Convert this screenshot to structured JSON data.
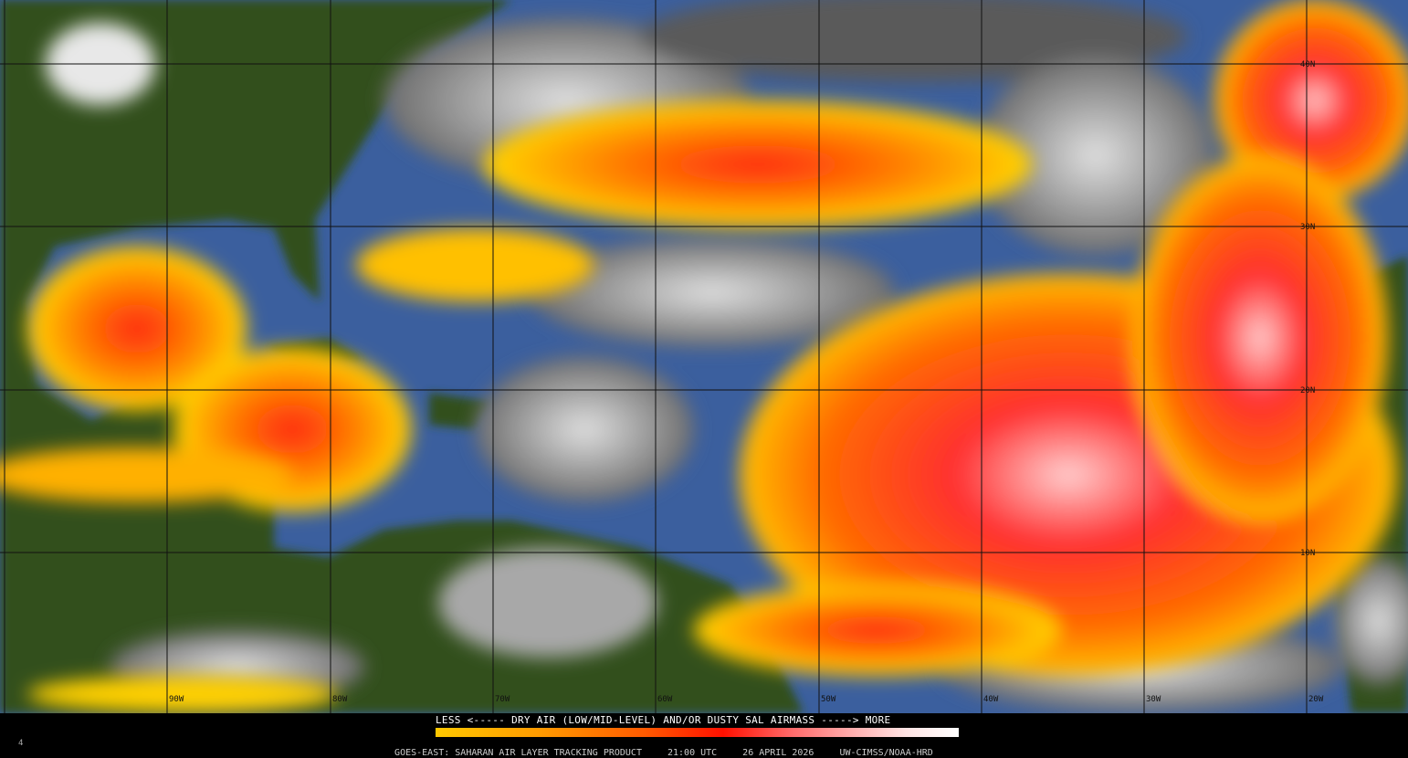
{
  "map": {
    "longitude_labels": [
      "90W",
      "80W",
      "70W",
      "60W",
      "50W",
      "40W",
      "30W",
      "20W"
    ],
    "latitude_labels": [
      "40N",
      "30N",
      "20N",
      "10N"
    ],
    "colors": {
      "ocean": "#3b5f9e",
      "land": "#2f4a1e",
      "cloud": "#b8b8b8",
      "sal_low": "#ffd000",
      "sal_mid": "#ff7a00",
      "sal_high": "#ff1a00",
      "sal_max": "#ffc8c8"
    }
  },
  "legend": {
    "title": "LESS <----- DRY AIR (LOW/MID-LEVEL) AND/OR DUSTY SAL AIRMASS -----> MORE"
  },
  "footer": {
    "product": "GOES-EAST: SAHARAN AIR LAYER TRACKING PRODUCT",
    "time": "21:00 UTC",
    "date": "26 APRIL 2026",
    "credit": "UW-CIMSS/NOAA-HRD",
    "frame": "4"
  }
}
